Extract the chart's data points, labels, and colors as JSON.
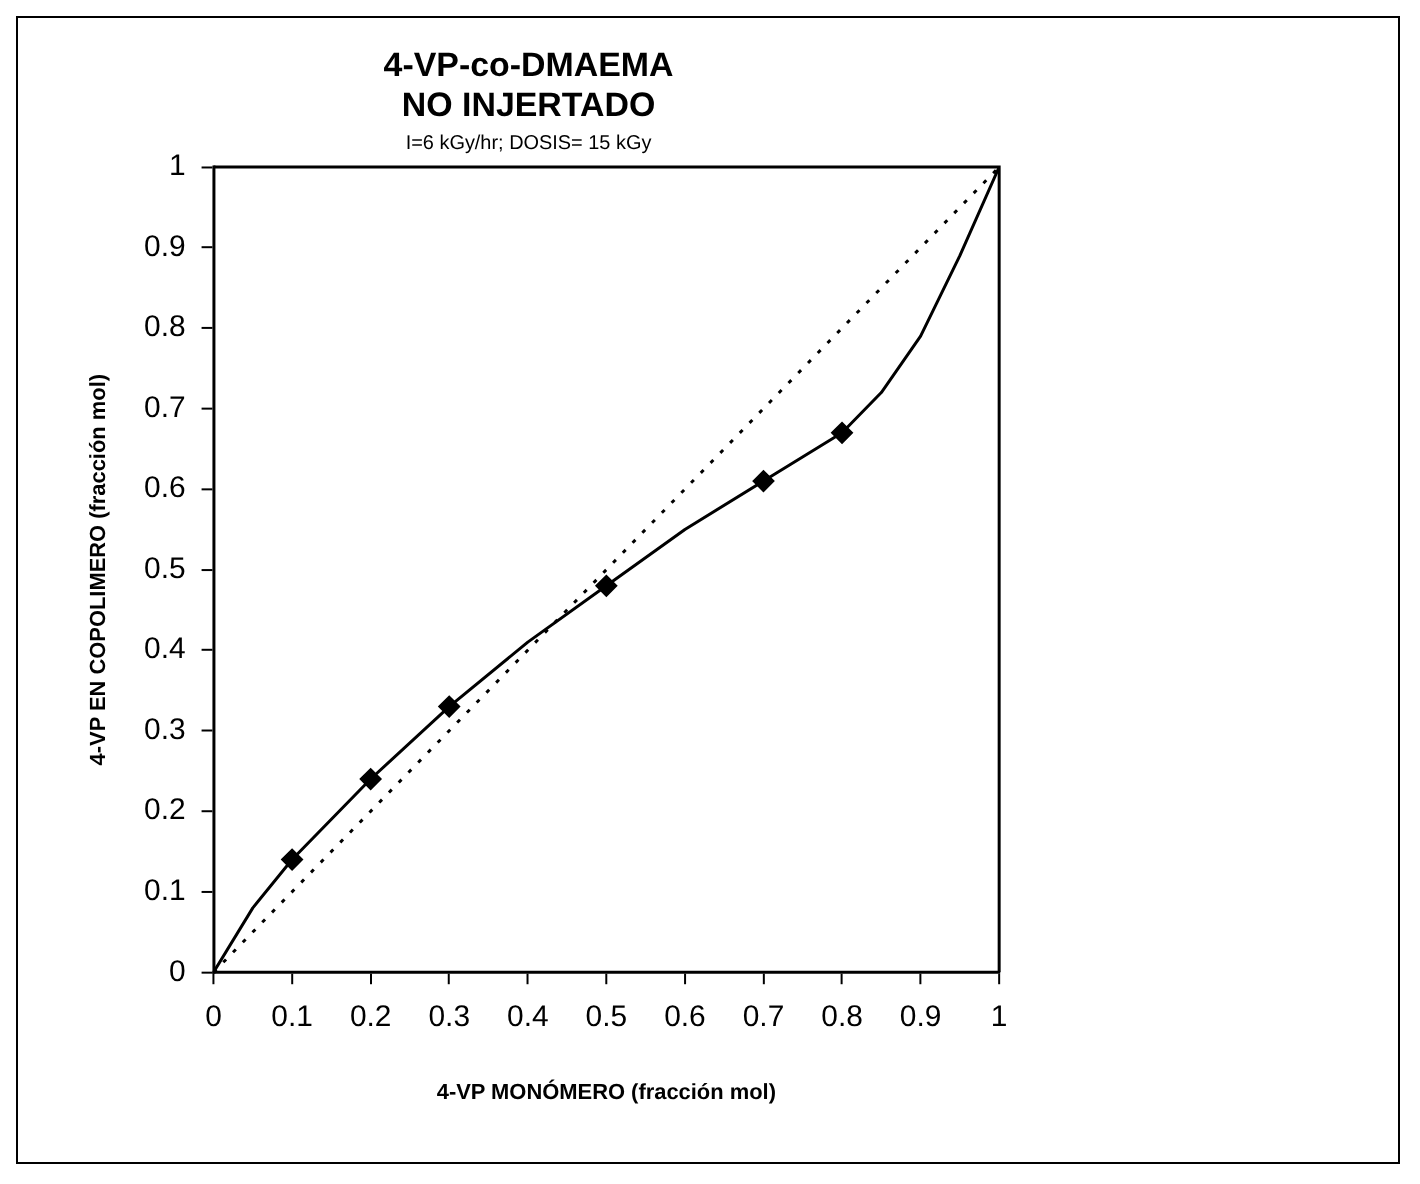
{
  "chart_data": {
    "type": "scatter",
    "title": "4-VP-co-DMAEMA\nNO INJERTADO",
    "subtitle": "I=6 kGy/hr; DOSIS= 15 kGy",
    "xlabel": "4-VP MONÓMERO (fracción mol)",
    "ylabel": "4-VP EN COPOLIMERO (fracción mol)",
    "xlim": [
      0,
      1
    ],
    "ylim": [
      0,
      1
    ],
    "xticks": [
      0,
      0.1,
      0.2,
      0.3,
      0.4,
      0.5,
      0.6,
      0.7,
      0.8,
      0.9,
      1
    ],
    "yticks": [
      0,
      0.1,
      0.2,
      0.3,
      0.4,
      0.5,
      0.6,
      0.7,
      0.8,
      0.9,
      1
    ],
    "grid": false,
    "legend": false,
    "series": [
      {
        "type": "line",
        "color": "#000000",
        "marker": "none",
        "line_style": "dotted",
        "x": [
          0,
          1
        ],
        "values": [
          0,
          1
        ]
      },
      {
        "type": "line",
        "color": "#000000",
        "marker": "none",
        "line_style": "solid",
        "x": [
          0,
          0.05,
          0.1,
          0.2,
          0.3,
          0.4,
          0.5,
          0.6,
          0.7,
          0.8,
          0.85,
          0.9,
          0.95,
          1
        ],
        "values": [
          0,
          0.08,
          0.14,
          0.24,
          0.33,
          0.41,
          0.48,
          0.55,
          0.61,
          0.67,
          0.72,
          0.79,
          0.89,
          1
        ]
      },
      {
        "color": "#000000",
        "marker": "diamond",
        "x": [
          0.1,
          0.2,
          0.3,
          0.5,
          0.7,
          0.8
        ],
        "values": [
          0.14,
          0.24,
          0.33,
          0.48,
          0.61,
          0.67
        ]
      }
    ]
  }
}
